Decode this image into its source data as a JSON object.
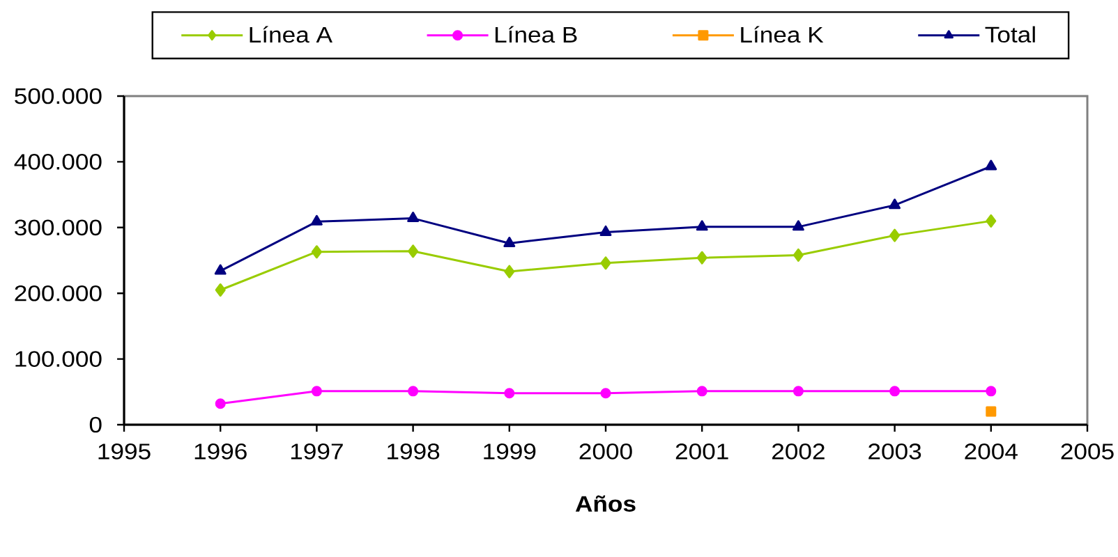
{
  "chart_data": {
    "type": "line",
    "xlabel": "Años",
    "x": [
      1996,
      1997,
      1998,
      1999,
      2000,
      2001,
      2002,
      2003,
      2004
    ],
    "series": [
      {
        "name": "Línea A",
        "color": "#99cc00",
        "marker": "diamond",
        "values": [
          205000,
          263000,
          264000,
          233000,
          246000,
          254000,
          258000,
          288000,
          310000
        ]
      },
      {
        "name": "Línea B",
        "color": "#ff00ff",
        "marker": "circle",
        "values": [
          32000,
          51000,
          51000,
          48000,
          48000,
          51000,
          51000,
          51000,
          51000
        ]
      },
      {
        "name": "Línea K",
        "color": "#ff9900",
        "marker": "square",
        "values": [
          null,
          null,
          null,
          null,
          null,
          null,
          null,
          null,
          20000
        ]
      },
      {
        "name": "Total",
        "color": "#000080",
        "marker": "triangle",
        "values": [
          234000,
          309000,
          314000,
          276000,
          293000,
          301000,
          301000,
          334000,
          393000
        ]
      }
    ],
    "xlim": [
      1995,
      2005
    ],
    "xticks": [
      1995,
      1996,
      1997,
      1998,
      1999,
      2000,
      2001,
      2002,
      2003,
      2004,
      2005
    ],
    "ylim": [
      0,
      500000
    ],
    "yticks": [
      0,
      {
        "value": 100000,
        "label": "100.000"
      },
      {
        "value": 200000,
        "label": "200.000"
      },
      {
        "value": 300000,
        "label": "300.000"
      },
      {
        "value": 400000,
        "label": "400.000"
      },
      {
        "value": 500000,
        "label": "500.000"
      }
    ],
    "legend": "top",
    "grid": false,
    "line_style": "solid"
  }
}
